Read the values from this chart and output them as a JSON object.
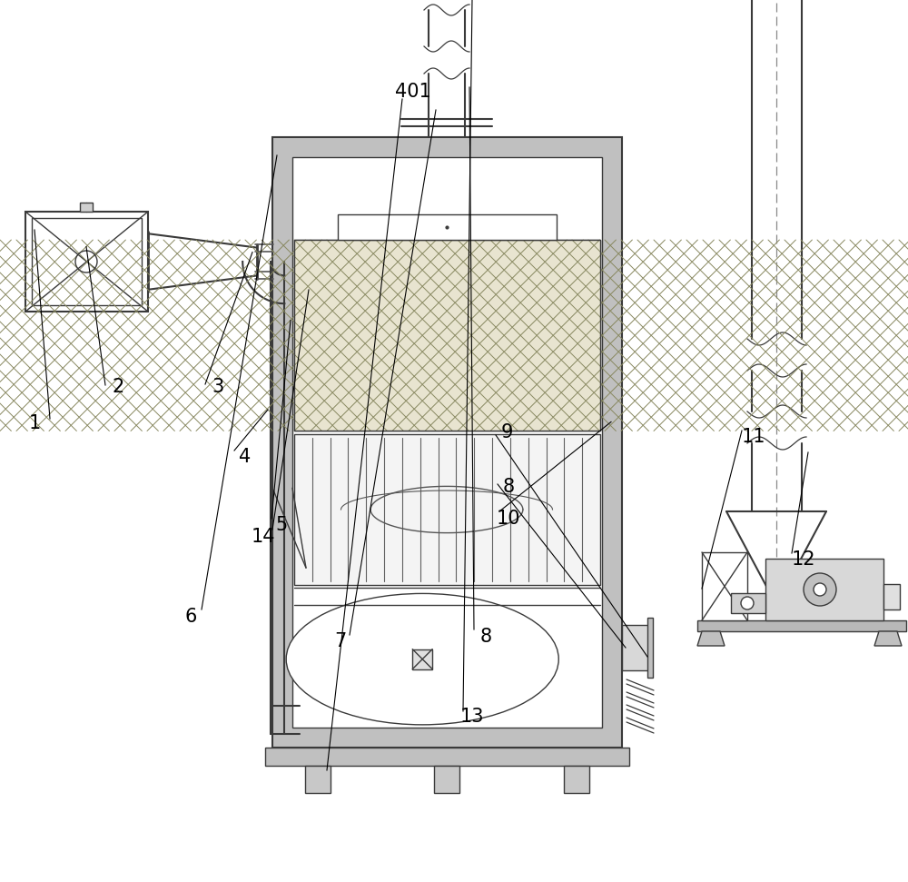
{
  "bg_color": "#ffffff",
  "lc": "#3a3a3a",
  "gray_insulation": "#c8c8c8",
  "gray_light": "#e0e0e0",
  "gray_medium": "#b8b8b8",
  "label_fontsize": 15,
  "lw": 1.0,
  "lw_thick": 1.5
}
